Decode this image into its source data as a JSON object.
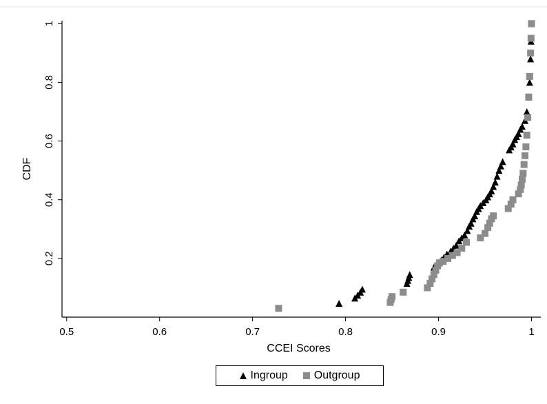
{
  "chart_data": {
    "type": "scatter",
    "xlabel": "CCEI Scores",
    "ylabel": "CDF",
    "xlim": [
      0.495,
      1.01
    ],
    "ylim": [
      0,
      1.01
    ],
    "x_ticks": [
      0.5,
      0.6,
      0.7,
      0.8,
      0.9,
      1
    ],
    "x_tick_labels": [
      "0.5",
      "0.6",
      "0.7",
      "0.8",
      "0.9",
      "1"
    ],
    "y_ticks": [
      0.2,
      0.4,
      0.6,
      0.8,
      1
    ],
    "y_tick_labels": [
      "0.2",
      "0.4",
      "0.6",
      "0.8",
      "1"
    ],
    "grid": false,
    "legend_position": "bottom-center",
    "series": [
      {
        "name": "Ingroup",
        "marker": "triangle",
        "color": "#000000",
        "x": [
          0.793,
          0.81,
          0.813,
          0.816,
          0.818,
          0.866,
          0.867,
          0.868,
          0.869,
          0.895,
          0.898,
          0.9,
          0.903,
          0.906,
          0.909,
          0.913,
          0.916,
          0.919,
          0.922,
          0.925,
          0.928,
          0.931,
          0.933,
          0.935,
          0.937,
          0.939,
          0.941,
          0.943,
          0.945,
          0.948,
          0.951,
          0.953,
          0.955,
          0.957,
          0.959,
          0.961,
          0.963,
          0.965,
          0.967,
          0.969,
          0.976,
          0.978,
          0.98,
          0.982,
          0.984,
          0.986,
          0.988,
          0.99,
          0.993,
          0.995,
          0.997,
          0.998,
          0.999,
          0.9995,
          1.0
        ],
        "y": [
          0.047,
          0.065,
          0.075,
          0.085,
          0.095,
          0.115,
          0.125,
          0.135,
          0.145,
          0.17,
          0.18,
          0.185,
          0.195,
          0.205,
          0.215,
          0.225,
          0.235,
          0.245,
          0.26,
          0.27,
          0.28,
          0.295,
          0.31,
          0.32,
          0.335,
          0.345,
          0.36,
          0.37,
          0.38,
          0.39,
          0.4,
          0.41,
          0.42,
          0.43,
          0.445,
          0.46,
          0.48,
          0.5,
          0.515,
          0.53,
          0.57,
          0.58,
          0.59,
          0.605,
          0.615,
          0.625,
          0.64,
          0.65,
          0.67,
          0.7,
          0.75,
          0.8,
          0.88,
          0.94,
          1.0
        ]
      },
      {
        "name": "Outgroup",
        "marker": "square",
        "color": "#8c8c8c",
        "x": [
          0.728,
          0.848,
          0.849,
          0.85,
          0.862,
          0.888,
          0.891,
          0.893,
          0.895,
          0.897,
          0.899,
          0.901,
          0.905,
          0.91,
          0.915,
          0.92,
          0.925,
          0.93,
          0.945,
          0.95,
          0.953,
          0.955,
          0.957,
          0.959,
          0.975,
          0.978,
          0.98,
          0.986,
          0.988,
          0.989,
          0.99,
          0.991,
          0.992,
          0.993,
          0.994,
          0.995,
          0.996,
          0.997,
          0.998,
          0.999,
          0.9995,
          1.0
        ],
        "y": [
          0.03,
          0.05,
          0.06,
          0.07,
          0.085,
          0.1,
          0.115,
          0.13,
          0.145,
          0.16,
          0.175,
          0.185,
          0.19,
          0.2,
          0.21,
          0.22,
          0.235,
          0.255,
          0.27,
          0.285,
          0.305,
          0.32,
          0.335,
          0.345,
          0.37,
          0.385,
          0.4,
          0.42,
          0.435,
          0.45,
          0.47,
          0.49,
          0.52,
          0.55,
          0.58,
          0.62,
          0.68,
          0.75,
          0.82,
          0.9,
          0.95,
          1.0
        ]
      }
    ]
  }
}
